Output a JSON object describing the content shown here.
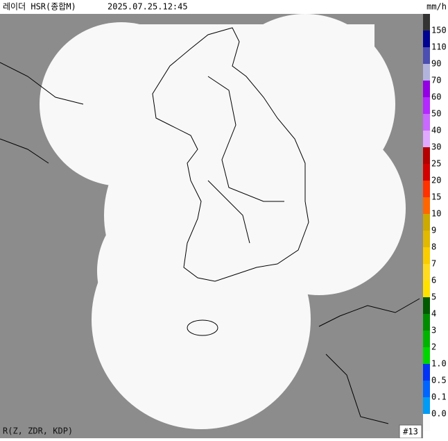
{
  "header": {
    "title": "레이더 HSR(종합M)",
    "datetime": "2025.07.25.12:45",
    "unit": "mm/h"
  },
  "legend": {
    "top_color": "#333333",
    "items": [
      {
        "label": "150",
        "color": "#000390"
      },
      {
        "label": "110",
        "color": "#4c4eb1"
      },
      {
        "label": "90",
        "color": "#b3b4de"
      },
      {
        "label": "70",
        "color": "#9300e4"
      },
      {
        "label": "60",
        "color": "#b329ff"
      },
      {
        "label": "50",
        "color": "#c969ff"
      },
      {
        "label": "40",
        "color": "#e0a9ff"
      },
      {
        "label": "30",
        "color": "#b40000"
      },
      {
        "label": "25",
        "color": "#d20000"
      },
      {
        "label": "20",
        "color": "#ff3200"
      },
      {
        "label": "15",
        "color": "#ff6600"
      },
      {
        "label": "10",
        "color": "#ccaa00"
      },
      {
        "label": "9",
        "color": "#e0b900"
      },
      {
        "label": "8",
        "color": "#f9cd00"
      },
      {
        "label": "7",
        "color": "#ffdc1f"
      },
      {
        "label": "6",
        "color": "#ffe100"
      },
      {
        "label": "5",
        "color": "#005a00"
      },
      {
        "label": "4",
        "color": "#008c00"
      },
      {
        "label": "3",
        "color": "#00b300"
      },
      {
        "label": "2",
        "color": "#00d500"
      },
      {
        "label": "1.0",
        "color": "#0033f5"
      },
      {
        "label": "0.5",
        "color": "#0064ff"
      },
      {
        "label": "0.1",
        "color": "#009bf5"
      },
      {
        "label": "0.0",
        "color": "#fafafa"
      }
    ]
  },
  "footer": {
    "method": "R(Z, ZDR, KDP)",
    "count": "#13"
  }
}
